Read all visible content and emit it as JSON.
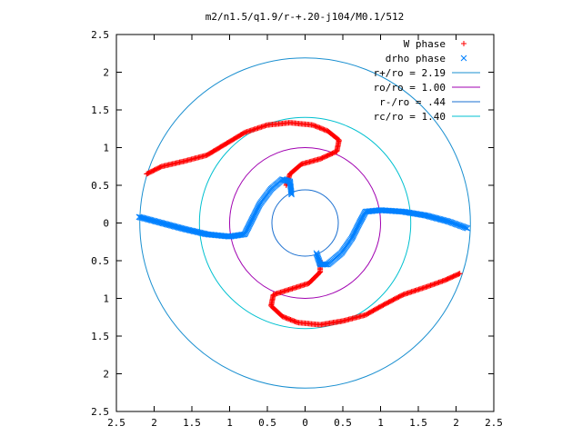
{
  "chart_data": {
    "type": "scatter",
    "title": "m2/n1.5/q1.9/r-+.20-j104/M0.1/512",
    "xlim": [
      -2.5,
      2.5
    ],
    "ylim": [
      -2.5,
      2.5
    ],
    "x_ticks": [
      -2.5,
      -2,
      -1.5,
      -1,
      -0.5,
      0,
      0.5,
      1,
      1.5,
      2,
      2.5
    ],
    "y_ticks": [
      -2.5,
      -2,
      -1.5,
      -1,
      -0.5,
      0,
      0.5,
      1,
      1.5,
      2,
      2.5
    ],
    "x_tick_labels": [
      "2.5",
      "2",
      "1.5",
      "1",
      "0.5",
      "0",
      "0.5",
      "1",
      "1.5",
      "2",
      "2.5"
    ],
    "y_tick_labels": [
      "2.5",
      "2",
      "1.5",
      "1",
      "0.5",
      "0",
      "0.5",
      "1",
      "1.5",
      "2",
      "2.5"
    ],
    "grid": false,
    "legend_position": "top-right",
    "legend": [
      {
        "label": "W phase",
        "kind": "points",
        "marker": "+",
        "color": "#ff0000"
      },
      {
        "label": "drho phase",
        "kind": "points",
        "marker": "x",
        "color": "#0080ff"
      },
      {
        "label": "r+/ro = 2.19",
        "kind": "line",
        "color": "#1a8fd0"
      },
      {
        "label": "ro/ro = 1.00",
        "kind": "line",
        "color": "#a000b0"
      },
      {
        "label": "r-/ro = .44",
        "kind": "line",
        "color": "#1a6fd0"
      },
      {
        "label": "rc/ro = 1.40",
        "kind": "line",
        "color": "#00c0d0"
      }
    ],
    "circles": [
      {
        "r": 2.19,
        "color": "#1a8fd0"
      },
      {
        "r": 1.0,
        "color": "#a000b0"
      },
      {
        "r": 0.44,
        "color": "#1a6fd0"
      },
      {
        "r": 1.4,
        "color": "#00c0d0"
      }
    ],
    "series": [
      {
        "name": "W phase",
        "marker": "+",
        "color": "#ff0000",
        "arms": [
          [
            [
              -2.1,
              0.65
            ],
            [
              -1.9,
              0.75
            ],
            [
              -1.6,
              0.82
            ],
            [
              -1.3,
              0.9
            ],
            [
              -1.05,
              1.05
            ],
            [
              -0.8,
              1.2
            ],
            [
              -0.5,
              1.3
            ],
            [
              -0.2,
              1.33
            ],
            [
              0.1,
              1.3
            ],
            [
              0.3,
              1.22
            ],
            [
              0.45,
              1.1
            ],
            [
              0.42,
              0.95
            ],
            [
              0.2,
              0.85
            ],
            [
              -0.05,
              0.78
            ],
            [
              -0.2,
              0.65
            ],
            [
              -0.25,
              0.5
            ]
          ],
          [
            [
              2.05,
              -0.67
            ],
            [
              1.85,
              -0.76
            ],
            [
              1.6,
              -0.85
            ],
            [
              1.3,
              -0.95
            ],
            [
              1.05,
              -1.08
            ],
            [
              0.8,
              -1.22
            ],
            [
              0.5,
              -1.3
            ],
            [
              0.2,
              -1.35
            ],
            [
              -0.1,
              -1.32
            ],
            [
              -0.3,
              -1.24
            ],
            [
              -0.45,
              -1.1
            ],
            [
              -0.42,
              -0.95
            ],
            [
              -0.2,
              -0.88
            ],
            [
              0.05,
              -0.8
            ],
            [
              0.2,
              -0.65
            ],
            [
              0.2,
              -0.5
            ]
          ]
        ]
      },
      {
        "name": "drho phase",
        "marker": "x",
        "color": "#0080ff",
        "arms": [
          [
            [
              -2.2,
              0.08
            ],
            [
              -1.9,
              0.0
            ],
            [
              -1.6,
              -0.08
            ],
            [
              -1.3,
              -0.15
            ],
            [
              -1.0,
              -0.18
            ],
            [
              -0.8,
              -0.15
            ],
            [
              -0.7,
              0.05
            ],
            [
              -0.6,
              0.25
            ],
            [
              -0.45,
              0.45
            ],
            [
              -0.3,
              0.58
            ],
            [
              -0.2,
              0.55
            ],
            [
              -0.18,
              0.38
            ]
          ],
          [
            [
              2.15,
              -0.07
            ],
            [
              1.9,
              0.02
            ],
            [
              1.6,
              0.1
            ],
            [
              1.3,
              0.15
            ],
            [
              1.0,
              0.17
            ],
            [
              0.8,
              0.15
            ],
            [
              0.72,
              0.0
            ],
            [
              0.62,
              -0.2
            ],
            [
              0.48,
              -0.4
            ],
            [
              0.3,
              -0.55
            ],
            [
              0.2,
              -0.55
            ],
            [
              0.15,
              -0.4
            ]
          ]
        ]
      }
    ]
  }
}
